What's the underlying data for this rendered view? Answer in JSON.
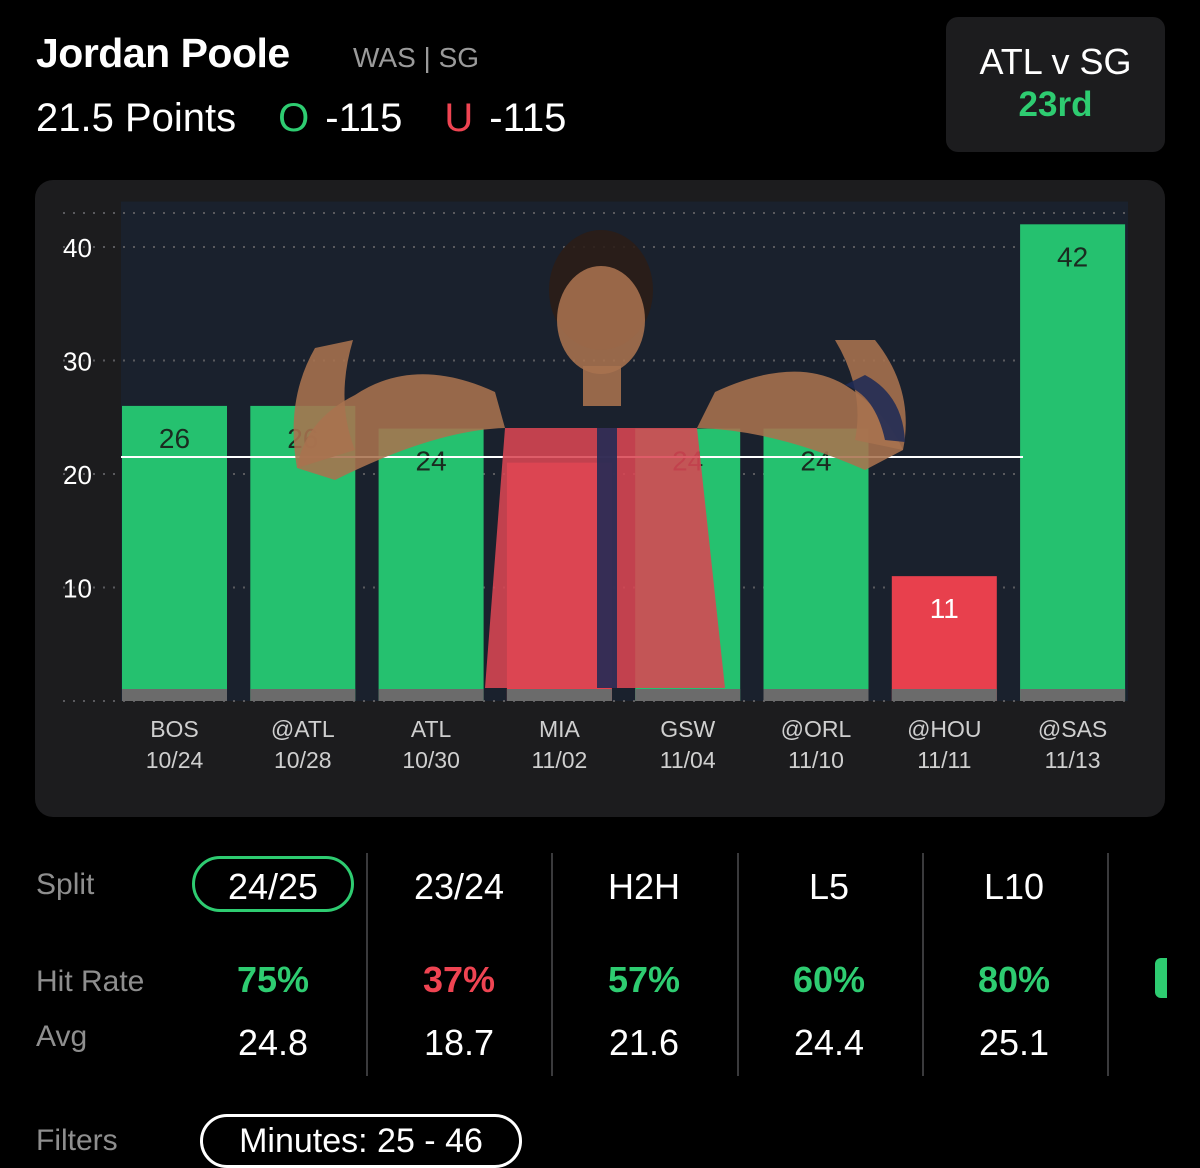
{
  "player": {
    "name": "Jordan Poole",
    "meta": "WAS | SG",
    "prop": "21.5 Points",
    "over_mark": "O",
    "over_odds": "-115",
    "under_mark": "U",
    "under_odds": "-115"
  },
  "matchup": {
    "title": "ATL v SG",
    "rank": "23rd"
  },
  "colors": {
    "over": "#2ecc71",
    "under": "#ef4452",
    "bar_over": "#25c16f",
    "bar_under": "#e8404d",
    "card": "#1c1c1e"
  },
  "chart_data": {
    "type": "bar",
    "categories": [
      "BOS",
      "@ATL",
      "ATL",
      "MIA",
      "GSW",
      "@ORL",
      "@HOU",
      "@SAS"
    ],
    "dates": [
      "10/24",
      "10/28",
      "10/30",
      "11/02",
      "11/04",
      "11/10",
      "11/11",
      "11/13"
    ],
    "values": [
      26,
      26,
      24,
      21,
      24,
      24,
      11,
      42
    ],
    "value_labels": [
      "26",
      "26",
      "24",
      "",
      "24",
      "24",
      "11",
      "42"
    ],
    "line": 21.5,
    "yticks": [
      10,
      20,
      30,
      40
    ],
    "ylim": [
      0,
      44
    ],
    "grid": true
  },
  "splits": {
    "labels": {
      "split": "Split",
      "hit_rate": "Hit Rate",
      "avg": "Avg"
    },
    "columns": [
      {
        "tab": "24/25",
        "hit": "75%",
        "hit_status": "over",
        "avg": "24.8",
        "active": true
      },
      {
        "tab": "23/24",
        "hit": "37%",
        "hit_status": "under",
        "avg": "18.7",
        "active": false
      },
      {
        "tab": "H2H",
        "hit": "57%",
        "hit_status": "over",
        "avg": "21.6",
        "active": false
      },
      {
        "tab": "L5",
        "hit": "60%",
        "hit_status": "over",
        "avg": "24.4",
        "active": false
      },
      {
        "tab": "L10",
        "hit": "80%",
        "hit_status": "over",
        "avg": "25.1",
        "active": false
      }
    ]
  },
  "filters": {
    "label": "Filters",
    "pill": "Minutes: 25 - 46"
  }
}
